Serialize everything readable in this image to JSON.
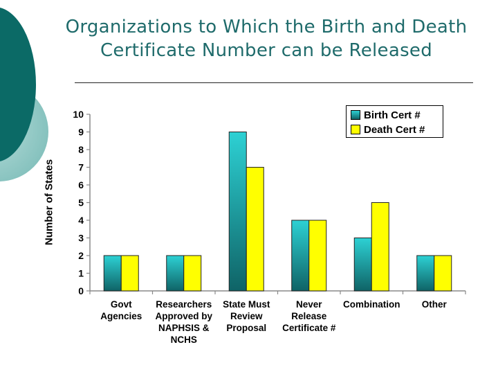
{
  "slide": {
    "title_line1": "Organizations to Which the Birth and Death",
    "title_line2": "Certificate Number can be Released"
  },
  "colors": {
    "title": "#1f6b6b",
    "accent_dark": "#0b6a66",
    "accent_light": "#9fcfcc",
    "birth_top": "#2dd1d4",
    "birth_bottom": "#0f6366",
    "death": "#ffff00"
  },
  "chart_data": {
    "type": "bar",
    "categories": [
      [
        "Govt",
        "Agencies"
      ],
      [
        "Researchers",
        "Approved by",
        "NAPHSIS &",
        "NCHS"
      ],
      [
        "State Must",
        "Review",
        "Proposal"
      ],
      [
        "Never",
        "Release",
        "Certificate #"
      ],
      [
        "Combination"
      ],
      [
        "Other"
      ]
    ],
    "series": [
      {
        "name": "Birth Cert #",
        "values": [
          2,
          2,
          9,
          4,
          3,
          2
        ]
      },
      {
        "name": "Death Cert #",
        "values": [
          2,
          2,
          7,
          4,
          5,
          2
        ]
      }
    ],
    "ylabel": "Number of States",
    "xlabel": "",
    "ylim": [
      0,
      10
    ],
    "yticks": [
      "0",
      "1",
      "2",
      "3",
      "4",
      "5",
      "6",
      "7",
      "8",
      "9",
      "10"
    ],
    "grid": false,
    "legend_position": "top-right"
  }
}
